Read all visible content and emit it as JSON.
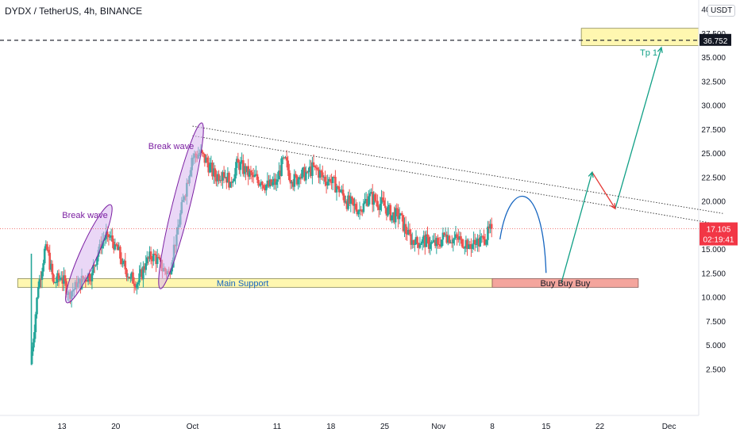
{
  "header": {
    "symbol": "DYDX / TetherUS, 4h, BINANCE",
    "currency_button": "USDT"
  },
  "price_axis": {
    "ticks": [
      "2.500",
      "5.000",
      "7.500",
      "10.000",
      "12.500",
      "15.000",
      "17.500",
      "20.000",
      "22.500",
      "25.000",
      "27.500",
      "30.000",
      "32.500",
      "35.000",
      "37.500",
      "40.000"
    ],
    "top_partial": "4"
  },
  "time_axis": {
    "ticks": [
      "13",
      "20",
      "Oct",
      "11",
      "18",
      "25",
      "Nov",
      "8",
      "15",
      "22",
      "Dec"
    ]
  },
  "current_price": {
    "value": "17.105",
    "countdown": "02:19:41",
    "color": "#f23645"
  },
  "target_price": {
    "value": "36.752"
  },
  "annotations": {
    "main_support": "Main Support",
    "buy_zone": "Buy Buy Buy",
    "break_wave_1": "Break wave",
    "break_wave_2": "Break wave",
    "tp1": "Tp 1"
  },
  "colors": {
    "up": "#26a69a",
    "down": "#ef5350",
    "support_fill": "#fff7b0",
    "buy_fill": "#f4a59d",
    "wave_fill": "#d9b7ee",
    "wave_stroke": "#7b1fa2",
    "forecast_blue": "#1565c0",
    "forecast_green": "#11a086",
    "forecast_red": "#e53935"
  },
  "chart_data": {
    "type": "candlestick",
    "symbol": "DYDX / TetherUS",
    "interval": "4h",
    "exchange": "BINANCE",
    "y_range": [
      0.5,
      42
    ],
    "x_range": [
      "Sep 9",
      "Dec 8"
    ],
    "grid": false,
    "last_price": 17.105,
    "target_price": 36.752,
    "close_path_daily": [
      [
        "Sep 9",
        3.0,
        11.0
      ],
      [
        "Sep 10",
        11.0,
        15.5
      ],
      [
        "Sep 11",
        15.5,
        11.5
      ],
      [
        "Sep 12",
        11.5,
        12.0
      ],
      [
        "Sep 13",
        12.0,
        10.5
      ],
      [
        "Sep 14",
        10.5,
        11.0
      ],
      [
        "Sep 15",
        11.0,
        12.0
      ],
      [
        "Sep 16",
        12.0,
        12.5
      ],
      [
        "Sep 17",
        12.5,
        15.5
      ],
      [
        "Sep 18",
        15.5,
        16.5
      ],
      [
        "Sep 19",
        16.5,
        15.5
      ],
      [
        "Sep 20",
        15.5,
        13.5
      ],
      [
        "Sep 21",
        13.5,
        12.0
      ],
      [
        "Sep 22",
        12.0,
        11.5
      ],
      [
        "Sep 23",
        11.5,
        13.5
      ],
      [
        "Sep 24",
        13.5,
        14.5
      ],
      [
        "Sep 25",
        14.5,
        13.0
      ],
      [
        "Sep 26",
        13.0,
        12.5
      ],
      [
        "Sep 27",
        12.5,
        16.5
      ],
      [
        "Sep 28",
        16.5,
        20.5
      ],
      [
        "Sep 29",
        20.5,
        24.5
      ],
      [
        "Sep 30",
        24.5,
        25.0
      ],
      [
        "Oct 1",
        25.0,
        24.0
      ],
      [
        "Oct 2",
        24.0,
        22.5
      ],
      [
        "Oct 3",
        22.5,
        23.0
      ],
      [
        "Oct 4",
        23.0,
        22.0
      ],
      [
        "Oct 5",
        22.0,
        24.0
      ],
      [
        "Oct 6",
        24.0,
        23.0
      ],
      [
        "Oct 7",
        23.0,
        22.5
      ],
      [
        "Oct 8",
        22.5,
        22.0
      ],
      [
        "Oct 9",
        22.0,
        21.5
      ],
      [
        "Oct 10",
        21.5,
        22.0
      ],
      [
        "Oct 11",
        22.0,
        24.5
      ],
      [
        "Oct 12",
        24.5,
        22.0
      ],
      [
        "Oct 13",
        22.0,
        22.5
      ],
      [
        "Oct 14",
        22.5,
        23.0
      ],
      [
        "Oct 15",
        23.0,
        23.5
      ],
      [
        "Oct 16",
        23.5,
        22.5
      ],
      [
        "Oct 17",
        22.5,
        22.0
      ],
      [
        "Oct 18",
        22.0,
        21.5
      ],
      [
        "Oct 19",
        21.5,
        20.0
      ],
      [
        "Oct 20",
        20.0,
        19.5
      ],
      [
        "Oct 21",
        19.5,
        19.0
      ],
      [
        "Oct 22",
        19.0,
        20.5
      ],
      [
        "Oct 23",
        20.5,
        20.0
      ],
      [
        "Oct 24",
        20.0,
        19.5
      ],
      [
        "Oct 25",
        19.5,
        18.5
      ],
      [
        "Oct 26",
        18.5,
        18.5
      ],
      [
        "Oct 27",
        18.5,
        16.5
      ],
      [
        "Oct 28",
        16.5,
        15.5
      ],
      [
        "Oct 29",
        15.5,
        16.0
      ],
      [
        "Oct 30",
        16.0,
        15.5
      ],
      [
        "Oct 31",
        15.5,
        15.5
      ],
      [
        "Nov 1",
        15.5,
        16.5
      ],
      [
        "Nov 2",
        16.5,
        16.0
      ],
      [
        "Nov 3",
        16.0,
        16.0
      ],
      [
        "Nov 4",
        16.0,
        15.5
      ],
      [
        "Nov 5",
        15.5,
        15.5
      ],
      [
        "Nov 6",
        15.5,
        16.0
      ],
      [
        "Nov 7",
        16.0,
        17.105
      ]
    ],
    "support_zone": {
      "from": "Sep 9",
      "to": "Nov 8",
      "low": 11.0,
      "high": 11.9,
      "label": "Main Support"
    },
    "buy_zone": {
      "from": "Nov 8",
      "to": "Nov 27",
      "low": 11.0,
      "high": 11.9,
      "label": "Buy Buy Buy"
    },
    "tp_zone": {
      "from": "Nov 20",
      "to": "Dec 10",
      "low": 36.2,
      "high": 38.0,
      "label": "Tp 1"
    },
    "trendlines": [
      {
        "from": [
          "Sep 30",
          27.8
        ],
        "to": [
          "Dec 8",
          18.7
        ]
      },
      {
        "from": [
          "Sep 30",
          26.8
        ],
        "to": [
          "Dec 8",
          17.5
        ]
      }
    ],
    "break_waves": [
      {
        "label": "Break wave",
        "from": [
          "Sep 14",
          10.0
        ],
        "to": [
          "Sep 19",
          19.0
        ]
      },
      {
        "label": "Break wave",
        "from": [
          "Sep 26",
          11.5
        ],
        "to": [
          "Oct 1",
          27.5
        ]
      }
    ],
    "forecast_path": [
      [
        "Nov 9",
        16.0
      ],
      [
        "Nov 12",
        20.0
      ],
      [
        "Nov 15",
        12.5
      ],
      [
        "Nov 17",
        11.5
      ],
      [
        "Nov 21",
        23.0
      ],
      [
        "Nov 24",
        19.2
      ],
      [
        "Nov 30",
        36.0
      ]
    ],
    "target_line": 36.752
  }
}
